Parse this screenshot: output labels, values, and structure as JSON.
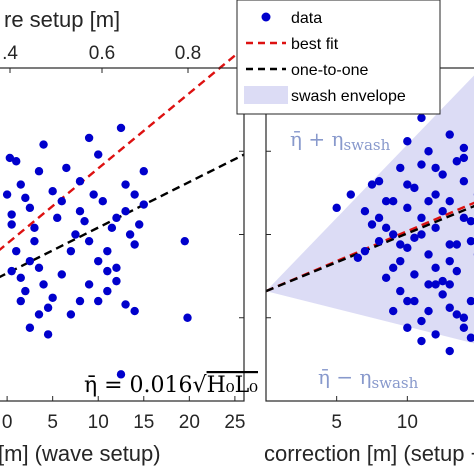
{
  "chart_data": [
    {
      "type": "scatter",
      "top_axis_label": "re setup [m]",
      "top_ticks": [
        ".4",
        "0.6",
        "0.8"
      ],
      "bottom_ticks": [
        "0",
        "5",
        "10",
        "15",
        "20",
        "25"
      ],
      "xlabel": "[m] (wave setup)",
      "xlim": [
        -1,
        26
      ],
      "ylim": [
        0,
        1
      ],
      "annotation": "η̄ = 0.016√H₀L₀",
      "annotation_prefix": "η̄ = 0.016",
      "annotation_radicand": "H₀L₀",
      "series": [
        {
          "name": "data",
          "color": "#0000cc",
          "x": [
            0,
            0.3,
            0.5,
            1,
            1.5,
            2,
            2.5,
            3,
            3.5,
            4,
            5,
            5.5,
            6,
            6.5,
            7,
            7.5,
            8,
            8.5,
            9,
            9.5,
            10,
            10.5,
            11,
            11.5,
            12,
            12.5,
            13,
            13.5,
            14,
            14.5,
            15,
            0.5,
            1,
            1.5,
            2,
            2.5,
            3,
            3.5,
            4,
            4.5,
            5,
            6,
            7,
            8,
            9,
            10,
            11,
            12,
            13,
            14,
            8,
            9,
            10,
            11,
            12,
            13,
            14,
            15,
            0.5,
            1.5,
            2.5,
            3.5,
            4.5,
            19.5,
            19.8,
            12.5
          ],
          "y": [
            0.62,
            0.73,
            0.56,
            0.72,
            0.65,
            0.61,
            0.58,
            0.52,
            0.69,
            0.77,
            0.63,
            0.55,
            0.6,
            0.7,
            0.45,
            0.5,
            0.57,
            0.54,
            0.48,
            0.62,
            0.42,
            0.6,
            0.39,
            0.52,
            0.55,
            0.82,
            0.57,
            0.5,
            0.47,
            0.53,
            0.59,
            0.39,
            0.45,
            0.37,
            0.33,
            0.42,
            0.48,
            0.4,
            0.35,
            0.28,
            0.31,
            0.38,
            0.26,
            0.3,
            0.35,
            0.3,
            0.33,
            0.36,
            0.29,
            0.27,
            0.66,
            0.79,
            0.74,
            0.45,
            0.4,
            0.65,
            0.62,
            0.69,
            0.53,
            0.3,
            0.22,
            0.26,
            0.2,
            0.48,
            0.25,
            0.08
          ]
        },
        {
          "name": "best fit",
          "color": "#dd1111",
          "line": [
            [
              -1,
              0.45
            ],
            [
              26,
              1.06
            ]
          ]
        },
        {
          "name": "one-to-one",
          "color": "#000000",
          "line": [
            [
              -1,
              0.37
            ],
            [
              26,
              0.74
            ]
          ]
        }
      ]
    },
    {
      "type": "scatter",
      "bottom_ticks": [
        "5",
        "10"
      ],
      "xlabel": "correction [m] (setup +",
      "xlim": [
        0,
        15
      ],
      "ylim": [
        0,
        1
      ],
      "envelope_upper_label": "η̄ + η",
      "envelope_upper_sub": "swash",
      "envelope_lower_label": "η̄ − η",
      "envelope_lower_sub": "swash",
      "envelope": {
        "color": "#dcdcf5",
        "apex": [
          0,
          0.33
        ],
        "upper_end": [
          15,
          0.99
        ],
        "lower_end": [
          15,
          0.17
        ]
      },
      "series": [
        {
          "name": "data",
          "color": "#0000cc",
          "x": [
            5,
            6,
            6.5,
            7,
            7.5,
            8,
            8.5,
            9,
            9.5,
            10,
            10.5,
            11,
            11.5,
            12,
            12.5,
            13,
            13.5,
            14,
            14.5,
            15,
            7,
            8,
            9,
            10,
            11,
            12,
            13,
            14,
            15,
            8.5,
            9.5,
            10.5,
            11.5,
            12.5,
            13.5,
            14.5,
            9,
            10,
            11,
            12,
            13,
            14,
            8,
            9,
            10,
            11,
            12,
            13,
            14,
            7.5,
            8.5,
            9.5,
            10.5,
            11.5,
            12.5,
            13.5,
            14.5,
            10,
            11,
            12,
            13,
            14,
            9.5,
            10.5,
            11.5,
            12.5,
            13.5,
            11,
            12,
            13,
            14,
            10,
            11.5,
            14.5,
            13,
            12
          ],
          "y": [
            0.58,
            0.62,
            0.43,
            0.57,
            0.53,
            0.66,
            0.6,
            0.5,
            0.7,
            0.46,
            0.64,
            0.55,
            0.75,
            0.52,
            0.68,
            0.42,
            0.72,
            0.55,
            0.48,
            0.62,
            0.45,
            0.55,
            0.4,
            0.58,
            0.5,
            0.62,
            0.35,
            0.66,
            0.44,
            0.37,
            0.47,
            0.38,
            0.44,
            0.32,
            0.39,
            0.3,
            0.27,
            0.3,
            0.24,
            0.35,
            0.28,
            0.22,
            0.48,
            0.6,
            0.78,
            0.85,
            0.7,
            0.8,
            0.76,
            0.65,
            0.52,
            0.42,
            0.49,
            0.6,
            0.57,
            0.47,
            0.54,
            0.65,
            0.71,
            0.88,
            0.6,
            0.73,
            0.33,
            0.3,
            0.35,
            0.36,
            0.26,
            0.18,
            0.2,
            0.15,
            0.25,
            0.22,
            0.27,
            0.19,
            0.47,
            0.4
          ]
        },
        {
          "name": "best fit",
          "color": "#dd1111",
          "line": [
            [
              0,
              0.33
            ],
            [
              15,
              0.6
            ]
          ]
        },
        {
          "name": "one-to-one",
          "color": "#000000",
          "line": [
            [
              0,
              0.33
            ],
            [
              15,
              0.59
            ]
          ]
        }
      ]
    }
  ],
  "legend": {
    "items": [
      {
        "label": "data",
        "kind": "marker",
        "color": "#0000cc"
      },
      {
        "label": "best fit",
        "kind": "dashed",
        "color": "#dd1111"
      },
      {
        "label": "one-to-one",
        "kind": "dashed",
        "color": "#000000"
      },
      {
        "label": "swash envelope",
        "kind": "patch",
        "color": "#dcdcf5"
      }
    ]
  }
}
